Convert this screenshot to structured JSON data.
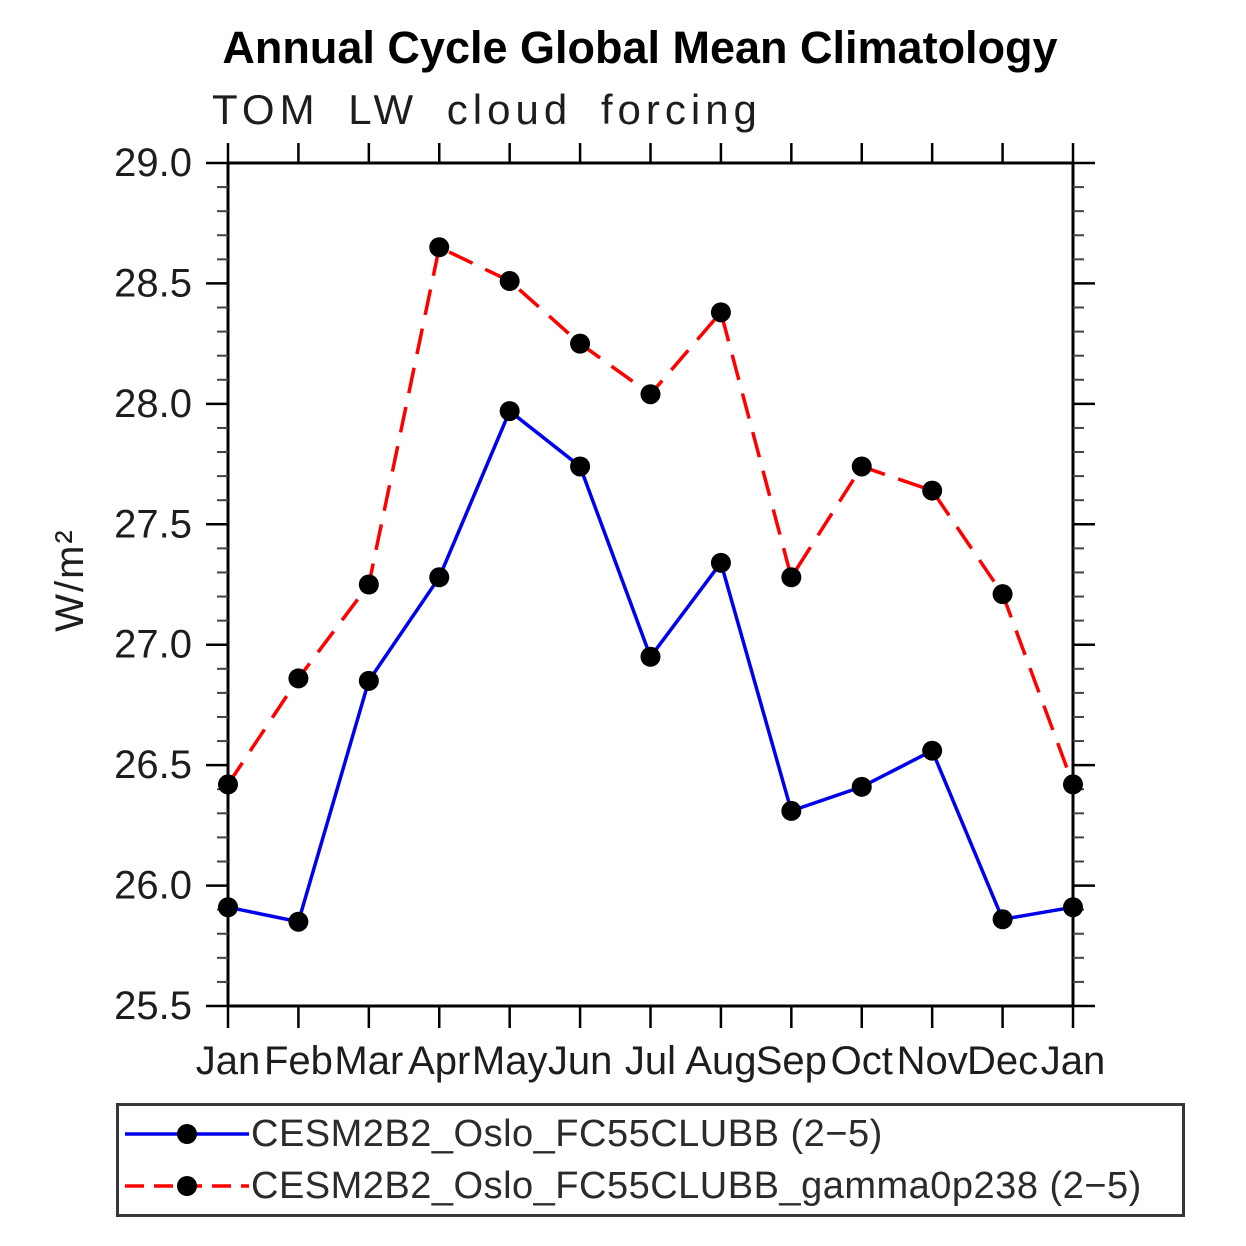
{
  "chart_data": {
    "type": "line",
    "title": "Annual Cycle Global Mean Climatology",
    "subtitle": "TOM LW cloud forcing",
    "ylabel": "W/m²",
    "categories": [
      "Jan",
      "Feb",
      "Mar",
      "Apr",
      "May",
      "Jun",
      "Jul",
      "Aug",
      "Sep",
      "Oct",
      "Nov",
      "Dec",
      "Jan"
    ],
    "ylim": [
      25.5,
      29.0
    ],
    "ytick_step": 0.5,
    "yminor_step": 0.1,
    "ytick_labels": [
      "25.5",
      "26.0",
      "26.5",
      "27.0",
      "27.5",
      "28.0",
      "28.5",
      "29.0"
    ],
    "grid": false,
    "legend_position": "below-plot-boxed",
    "colors": {
      "axis": "#000000",
      "major_tick": "#000000",
      "minor_tick": "#444444",
      "tick_label": "#1d1d1d",
      "marker": "#000000"
    },
    "series": [
      {
        "name": "CESM2B2_Oslo_FC55CLUBB (2−5)",
        "color": "#0000ee",
        "line_style": "solid",
        "marker": "filled-circle",
        "marker_color": "#000000",
        "values": [
          25.91,
          25.85,
          26.85,
          27.28,
          27.97,
          27.74,
          26.95,
          27.34,
          26.31,
          26.41,
          26.56,
          25.86,
          25.91
        ]
      },
      {
        "name": "CESM2B2_Oslo_FC55CLUBB_gamma0p238 (2−5)",
        "color": "#ff0000",
        "line_style": "dashed",
        "marker": "filled-circle",
        "marker_color": "#000000",
        "values": [
          26.42,
          26.86,
          27.25,
          28.65,
          28.51,
          28.25,
          28.04,
          28.38,
          27.28,
          27.74,
          27.64,
          27.21,
          26.42
        ]
      }
    ]
  }
}
